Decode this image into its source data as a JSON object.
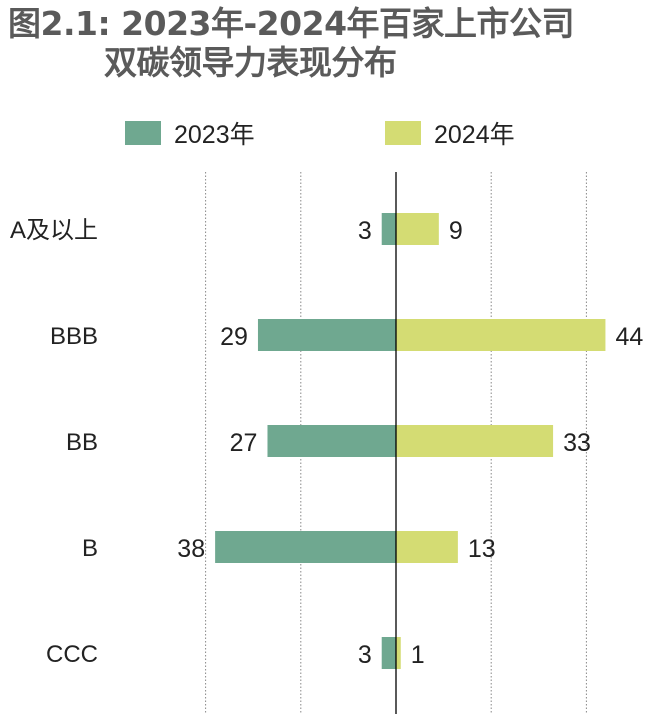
{
  "chart_data": {
    "type": "bar",
    "orientation": "horizontal-diverging",
    "title": "图2.1: 2023年-2024年百家上市公司",
    "subtitle": "双碳领导力表现分布",
    "categories": [
      "A及以上",
      "BBB",
      "BB",
      "B",
      "CCC"
    ],
    "series": [
      {
        "name": "2023年",
        "values": [
          3,
          29,
          27,
          38,
          3
        ],
        "color": "#6fa890",
        "side": "left"
      },
      {
        "name": "2024年",
        "values": [
          9,
          44,
          33,
          13,
          1
        ],
        "color": "#d4dc73",
        "side": "right"
      }
    ],
    "xlim": [
      -40,
      44
    ],
    "gridlines": [
      -40,
      -20,
      20,
      40
    ],
    "grid": "vertical dotted",
    "legend": "top",
    "axis_color": "#000000"
  }
}
